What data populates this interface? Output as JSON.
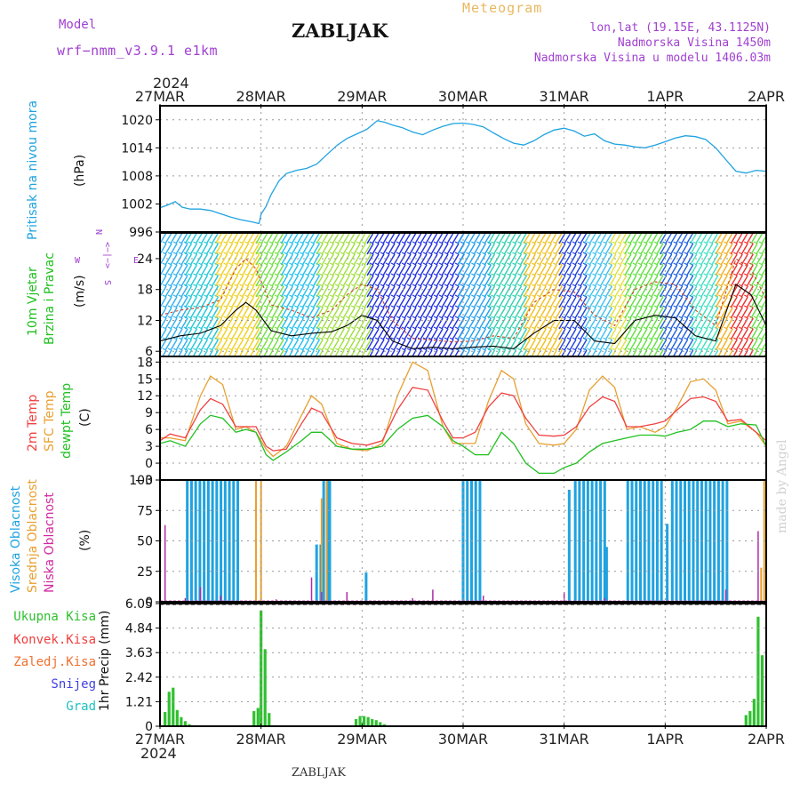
{
  "header": {
    "model_label": "Model",
    "model_name": "wrf−nmm_v3.9.1  e1km",
    "station": "ZABLJAK",
    "chart_kind": "Meteogram",
    "lonlat": "lon,lat (19.15E, 43.1125N)",
    "elevation": "Nadmorska Visina 1450m",
    "model_elevation": "Nadmorska Visina u modelu 1406.03m",
    "footer_station": "ZABLJAK",
    "watermark": "made by Angel",
    "year_top": "2024",
    "year_bottom": "2024"
  },
  "colors": {
    "pressure": "#1fa3e0",
    "temp2m": "#f04040",
    "sfc": "#e8a030",
    "dewpt": "#20c020",
    "high_cloud": "#1fa3e0",
    "mid_cloud": "#e8a030",
    "low_cloud": "#b02aa8",
    "precip": "#30c030",
    "purple": "#a040d0",
    "tan": "#e8b860"
  },
  "chart_data": [
    {
      "id": "pressure",
      "type": "line",
      "ylabel_outer": "Pritisak na nivou mora",
      "ylabel_unit": "(hPa)",
      "ylim": [
        996,
        1023
      ],
      "yticks": [
        "996",
        "1002",
        "1008",
        "1014",
        "1020"
      ],
      "x_days": [
        "27MAR",
        "28MAR",
        "29MAR",
        "30MAR",
        "31MAR",
        "1APR",
        "2APR"
      ],
      "grid": true,
      "series": [
        {
          "x": [
            0,
            0.08,
            0.15,
            0.22,
            0.3,
            0.4,
            0.5,
            0.6,
            0.7,
            0.8,
            0.9,
            0.98,
            1.0,
            1.05,
            1.1,
            1.18,
            1.25,
            1.35,
            1.45,
            1.55,
            1.65,
            1.75,
            1.85,
            1.95,
            2.05,
            2.15,
            2.22,
            2.3,
            2.4,
            2.5,
            2.6,
            2.7,
            2.8,
            2.9,
            3.0,
            3.1,
            3.2,
            3.3,
            3.4,
            3.5,
            3.6,
            3.7,
            3.8,
            3.9,
            4.0,
            4.1,
            4.2,
            4.3,
            4.4,
            4.5,
            4.6,
            4.7,
            4.8,
            4.9,
            5.0,
            5.1,
            5.2,
            5.3,
            5.4,
            5.5,
            5.6,
            5.7,
            5.8,
            5.9,
            6.0
          ],
          "y": [
            1001.2,
            1001.8,
            1002.5,
            1001.3,
            1000.9,
            1000.9,
            1000.6,
            999.9,
            999.2,
            998.6,
            998.2,
            997.8,
            999.8,
            1001.5,
            1004,
            1007,
            1008.5,
            1009.2,
            1009.6,
            1010.5,
            1012.5,
            1014.5,
            1016.0,
            1017.0,
            1018.0,
            1019.8,
            1019.5,
            1018.9,
            1018.3,
            1017.4,
            1016.8,
            1017.8,
            1018.6,
            1019.2,
            1019.3,
            1019.0,
            1018.5,
            1017.2,
            1016.0,
            1015.0,
            1014.6,
            1015.5,
            1016.8,
            1017.8,
            1018.2,
            1017.6,
            1016.5,
            1017.0,
            1015.5,
            1014.8,
            1014.6,
            1014.2,
            1014.0,
            1014.6,
            1015.3,
            1016.1,
            1016.6,
            1016.4,
            1015.8,
            1014.0,
            1011.5,
            1009.0,
            1008.6,
            1009.2,
            1009.0
          ]
        }
      ]
    },
    {
      "id": "wind",
      "type": "line",
      "ylabel_outer_1": "10m Vjetar",
      "ylabel_outer_2": "Brzina i Pravac",
      "ylabel_unit": "(m/s)",
      "compass_n": "N",
      "compass_s": "S",
      "compass_w": "W",
      "compass_e": "E",
      "compass_arrows": "<−|−>",
      "ylim": [
        5,
        29
      ],
      "yticks": [
        "6",
        "12",
        "18",
        "24"
      ],
      "grid": true,
      "series": [
        {
          "name": "",
          "color_key": "tan",
          "x": [
            0,
            0.2,
            0.4,
            0.6,
            0.75,
            0.85,
            0.95,
            1.1,
            1.3,
            1.5,
            1.7,
            1.85,
            2.0,
            2.15,
            2.3,
            2.5,
            2.7,
            2.9,
            3.1,
            3.3,
            3.5,
            3.7,
            3.9,
            4.1,
            4.3,
            4.5,
            4.7,
            4.9,
            5.1,
            5.3,
            5.5,
            5.7,
            5.85,
            6.0
          ],
          "y": [
            13,
            14,
            14.5,
            16,
            22,
            24,
            22,
            15,
            14,
            12.5,
            14,
            17,
            19,
            18,
            12,
            8.5,
            8.2,
            7.8,
            8.0,
            9,
            8.5,
            15.5,
            18,
            17.5,
            13,
            11,
            18,
            19.5,
            19,
            14,
            11,
            24,
            22,
            16
          ]
        },
        {
          "name": "",
          "color_key": "black",
          "x": [
            0,
            0.2,
            0.4,
            0.6,
            0.75,
            0.85,
            0.95,
            1.1,
            1.3,
            1.5,
            1.7,
            1.85,
            2.0,
            2.15,
            2.3,
            2.5,
            2.7,
            2.9,
            3.1,
            3.3,
            3.5,
            3.7,
            3.9,
            4.1,
            4.3,
            4.5,
            4.7,
            4.9,
            5.1,
            5.3,
            5.5,
            5.7,
            5.85,
            6.0
          ],
          "y": [
            8,
            9,
            9.5,
            11,
            14,
            15.5,
            14,
            10,
            9,
            9.5,
            9.8,
            11,
            13,
            12,
            8,
            6.5,
            6.8,
            6.5,
            6.8,
            7,
            6.5,
            9.5,
            12,
            12,
            8,
            7.5,
            12,
            13,
            12.5,
            9,
            8,
            19,
            17,
            11
          ]
        }
      ]
    },
    {
      "id": "temperature",
      "type": "line",
      "ylabel_outer_1": "2m Temp",
      "ylabel_outer_2": "SFC Temp",
      "ylabel_outer_3": "dewpt Temp",
      "ylabel_unit": "(C)",
      "ylim": [
        -3,
        19
      ],
      "yticks": [
        "−3",
        "0",
        "3",
        "6",
        "9",
        "12",
        "15",
        "18"
      ],
      "grid": true,
      "series": [
        {
          "name": "2m Temp",
          "color_key": "temp2m",
          "x": [
            0,
            0.1,
            0.25,
            0.4,
            0.5,
            0.62,
            0.75,
            0.85,
            0.95,
            1.05,
            1.12,
            1.25,
            1.4,
            1.5,
            1.6,
            1.75,
            1.9,
            2.05,
            2.2,
            2.35,
            2.5,
            2.65,
            2.8,
            2.9,
            3.0,
            3.12,
            3.25,
            3.38,
            3.5,
            3.62,
            3.75,
            3.9,
            4.0,
            4.12,
            4.25,
            4.38,
            4.5,
            4.62,
            4.75,
            4.9,
            5.0,
            5.12,
            5.25,
            5.38,
            5.5,
            5.62,
            5.75,
            5.9,
            6.0
          ],
          "y": [
            4,
            5.2,
            4.5,
            9.5,
            11.5,
            10.5,
            6.5,
            6.5,
            6.5,
            3,
            2.2,
            2.5,
            7,
            9.8,
            9,
            4.5,
            3.5,
            3.2,
            4,
            9.5,
            13.5,
            13,
            7.5,
            4.5,
            4.5,
            5.5,
            10,
            12.5,
            12,
            8,
            5,
            4.8,
            5,
            6.5,
            10,
            11.8,
            11,
            6.5,
            6.5,
            7,
            7.5,
            9.5,
            11.5,
            11.8,
            11,
            7.5,
            7.8,
            5.5,
            4
          ]
        },
        {
          "name": "SFC Temp",
          "color_key": "sfc",
          "x": [
            0,
            0.1,
            0.25,
            0.4,
            0.5,
            0.62,
            0.75,
            0.85,
            0.95,
            1.05,
            1.12,
            1.25,
            1.4,
            1.5,
            1.6,
            1.75,
            1.9,
            2.05,
            2.2,
            2.35,
            2.5,
            2.65,
            2.8,
            2.9,
            3.0,
            3.12,
            3.25,
            3.38,
            3.5,
            3.62,
            3.75,
            3.9,
            4.0,
            4.12,
            4.25,
            4.38,
            4.5,
            4.62,
            4.75,
            4.9,
            5.0,
            5.12,
            5.25,
            5.38,
            5.5,
            5.62,
            5.75,
            5.9,
            6.0
          ],
          "y": [
            4.5,
            4.5,
            4,
            12,
            15.5,
            14,
            6,
            6.5,
            5.5,
            2.5,
            1.2,
            3,
            8.5,
            12,
            10.5,
            3.5,
            2.5,
            2.2,
            3.5,
            12,
            18,
            16.5,
            6.5,
            3.5,
            3.5,
            3.5,
            11,
            16.5,
            15,
            7,
            3.5,
            3.2,
            3.5,
            6,
            13,
            15.5,
            13.5,
            6,
            6.5,
            5.5,
            6.5,
            10,
            14.5,
            15,
            13,
            7,
            7.5,
            5.5,
            3
          ]
        },
        {
          "name": "dewpt Temp",
          "color_key": "dewpt",
          "x": [
            0,
            0.1,
            0.25,
            0.4,
            0.5,
            0.62,
            0.75,
            0.85,
            0.95,
            1.05,
            1.12,
            1.25,
            1.4,
            1.5,
            1.6,
            1.75,
            1.9,
            2.05,
            2.2,
            2.35,
            2.5,
            2.65,
            2.8,
            2.9,
            3.0,
            3.12,
            3.25,
            3.38,
            3.5,
            3.62,
            3.75,
            3.9,
            4.0,
            4.12,
            4.25,
            4.38,
            4.5,
            4.62,
            4.75,
            4.9,
            5.0,
            5.12,
            5.25,
            5.38,
            5.5,
            5.62,
            5.75,
            5.9,
            6.0
          ],
          "y": [
            3.5,
            4,
            3,
            7,
            8.5,
            8,
            5.5,
            6,
            5.5,
            1.5,
            0.5,
            2,
            4,
            5.5,
            5.5,
            3,
            2.5,
            2.5,
            3,
            6,
            8,
            8.5,
            6.5,
            4,
            3,
            1.5,
            1.5,
            5.5,
            3.5,
            0,
            -1.8,
            -1.8,
            -0.8,
            0,
            2,
            3.5,
            4,
            4.5,
            5,
            5,
            4.8,
            5.5,
            6,
            7.5,
            7.5,
            6.5,
            7,
            6.8,
            3
          ]
        }
      ]
    },
    {
      "id": "clouds",
      "type": "bar",
      "ylabel_outer_1": "Visoka Oblacnost",
      "ylabel_outer_2": "Srednja Oblacnost",
      "ylabel_outer_3": "Niska Oblacnost",
      "ylabel_unit": "(%)",
      "ylim": [
        0,
        100
      ],
      "yticks": [
        "0",
        "25",
        "50",
        "75",
        "100"
      ],
      "grid": true,
      "high_runs": [
        [
          0.27,
          0.77,
          100
        ],
        [
          1.55,
          1.62,
          47
        ],
        [
          1.62,
          1.67,
          100
        ],
        [
          1.68,
          1.72,
          100
        ],
        [
          2.04,
          2.06,
          24
        ],
        [
          3.0,
          3.2,
          100
        ],
        [
          4.05,
          4.09,
          92
        ],
        [
          4.11,
          4.42,
          100
        ],
        [
          4.42,
          4.46,
          45
        ],
        [
          4.63,
          4.99,
          100
        ],
        [
          5.02,
          5.06,
          64
        ],
        [
          5.07,
          5.62,
          100
        ]
      ],
      "mid_bars": [
        [
          0.95,
          100
        ],
        [
          1.0,
          100
        ],
        [
          1.6,
          85
        ],
        [
          1.65,
          100
        ],
        [
          5.95,
          28
        ],
        [
          5.98,
          100
        ],
        [
          6.0,
          100
        ]
      ],
      "low_bars": [
        [
          0.05,
          63
        ],
        [
          0.25,
          3
        ],
        [
          0.4,
          12
        ],
        [
          0.6,
          5
        ],
        [
          1.15,
          2
        ],
        [
          1.5,
          20
        ],
        [
          1.6,
          8
        ],
        [
          1.85,
          8
        ],
        [
          2.5,
          3
        ],
        [
          2.7,
          10
        ],
        [
          3.2,
          5
        ],
        [
          4.0,
          8
        ],
        [
          4.4,
          3
        ],
        [
          5.6,
          10
        ],
        [
          5.92,
          58
        ]
      ]
    },
    {
      "id": "precip",
      "type": "bar",
      "labels": [
        "Ukupna Kisa",
        "Konvek.Kisa",
        "Zaledj.Kisa",
        "Snijeg",
        "Grad"
      ],
      "ylabel_unit": "1hr Precip (mm)",
      "ylim": [
        0,
        6.05
      ],
      "yticks": [
        "0",
        "1.21",
        "2.42",
        "3.63",
        "4.84",
        "6.05"
      ],
      "x_days": [
        "27MAR",
        "28MAR",
        "29MAR",
        "30MAR",
        "31MAR",
        "1APR",
        "2APR"
      ],
      "grid": true,
      "bars": [
        [
          0.05,
          0.7
        ],
        [
          0.09,
          1.7
        ],
        [
          0.13,
          1.9
        ],
        [
          0.17,
          0.8
        ],
        [
          0.21,
          0.45
        ],
        [
          0.25,
          0.25
        ],
        [
          0.29,
          0.1
        ],
        [
          0.33,
          0.05
        ],
        [
          0.93,
          0.75
        ],
        [
          0.97,
          0.9
        ],
        [
          1.0,
          5.7
        ],
        [
          1.04,
          3.8
        ],
        [
          1.08,
          0.65
        ],
        [
          1.12,
          0.05
        ],
        [
          1.94,
          0.35
        ],
        [
          1.98,
          0.5
        ],
        [
          2.02,
          0.5
        ],
        [
          2.06,
          0.45
        ],
        [
          2.1,
          0.35
        ],
        [
          2.14,
          0.3
        ],
        [
          2.18,
          0.2
        ],
        [
          2.22,
          0.1
        ],
        [
          5.8,
          0.55
        ],
        [
          5.84,
          0.75
        ],
        [
          5.88,
          1.35
        ],
        [
          5.92,
          5.4
        ],
        [
          5.96,
          3.5
        ]
      ]
    }
  ]
}
